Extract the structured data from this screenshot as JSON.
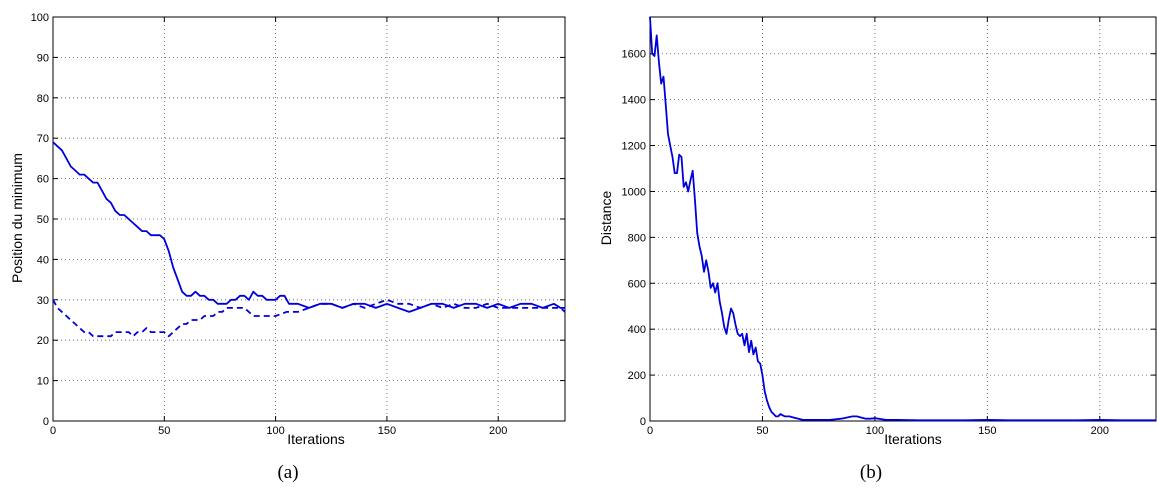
{
  "chart_data": [
    {
      "type": "line",
      "caption": "(a)",
      "xlabel": "Iterations",
      "ylabel": "Position du minimum",
      "xlim": [
        0,
        230
      ],
      "ylim": [
        0,
        100
      ],
      "xticks": [
        0,
        50,
        100,
        150,
        200
      ],
      "yticks": [
        0,
        10,
        20,
        30,
        40,
        50,
        60,
        70,
        80,
        90,
        100
      ],
      "grid": true,
      "color": "#0000dd",
      "series": [
        {
          "style": "solid",
          "x": [
            0,
            2,
            4,
            6,
            8,
            10,
            12,
            14,
            16,
            18,
            20,
            22,
            24,
            26,
            28,
            30,
            32,
            34,
            36,
            38,
            40,
            42,
            44,
            46,
            48,
            50,
            52,
            54,
            56,
            58,
            60,
            62,
            64,
            66,
            68,
            70,
            72,
            74,
            76,
            78,
            80,
            82,
            84,
            86,
            88,
            90,
            92,
            94,
            96,
            98,
            100,
            102,
            104,
            106,
            108,
            110,
            115,
            120,
            125,
            130,
            135,
            140,
            145,
            150,
            155,
            160,
            165,
            170,
            175,
            180,
            185,
            190,
            195,
            200,
            205,
            210,
            215,
            220,
            225,
            228,
            230
          ],
          "y": [
            69,
            68,
            67,
            65,
            63,
            62,
            61,
            61,
            60,
            59,
            59,
            57,
            55,
            54,
            52,
            51,
            51,
            50,
            49,
            48,
            47,
            47,
            46,
            46,
            46,
            45,
            42,
            38,
            35,
            32,
            31,
            31,
            32,
            31,
            31,
            30,
            30,
            29,
            29,
            29,
            30,
            30,
            31,
            31,
            30,
            32,
            31,
            31,
            30,
            30,
            30,
            31,
            31,
            29,
            29,
            29,
            28,
            29,
            29,
            28,
            29,
            29,
            28,
            29,
            28,
            27,
            28,
            29,
            29,
            28,
            29,
            29,
            28,
            29,
            28,
            29,
            29,
            28,
            29,
            28,
            28
          ]
        },
        {
          "style": "dashed",
          "x": [
            0,
            2,
            4,
            6,
            8,
            10,
            12,
            14,
            16,
            18,
            20,
            22,
            24,
            26,
            28,
            30,
            32,
            34,
            36,
            38,
            40,
            42,
            44,
            46,
            48,
            50,
            52,
            54,
            56,
            58,
            60,
            62,
            64,
            66,
            68,
            70,
            72,
            74,
            76,
            78,
            80,
            82,
            84,
            86,
            88,
            90,
            95,
            100,
            105,
            110,
            115,
            120,
            125,
            130,
            135,
            140,
            145,
            150,
            155,
            160,
            165,
            170,
            175,
            180,
            185,
            190,
            195,
            200,
            205,
            210,
            215,
            220,
            225,
            228,
            230
          ],
          "y": [
            30,
            28,
            27,
            26,
            25,
            24,
            23,
            22,
            22,
            21,
            21,
            21,
            21,
            21,
            22,
            22,
            22,
            22,
            21,
            22,
            22,
            23,
            22,
            22,
            22,
            22,
            21,
            22,
            23,
            24,
            24,
            25,
            25,
            25,
            26,
            26,
            26,
            27,
            27,
            28,
            28,
            28,
            28,
            28,
            27,
            26,
            26,
            26,
            27,
            27,
            28,
            29,
            29,
            28,
            29,
            28,
            29,
            30,
            29,
            29,
            28,
            29,
            28,
            29,
            28,
            28,
            29,
            28,
            28,
            28,
            28,
            28,
            28,
            28,
            27
          ]
        }
      ]
    },
    {
      "type": "line",
      "caption": "(b)",
      "xlabel": "Iterations",
      "ylabel": "Distance",
      "xlim": [
        0,
        225
      ],
      "ylim": [
        0,
        1760
      ],
      "xticks": [
        0,
        50,
        100,
        150,
        200
      ],
      "yticks": [
        0,
        200,
        400,
        600,
        800,
        1000,
        1200,
        1400,
        1600
      ],
      "grid": true,
      "color": "#0000dd",
      "series": [
        {
          "style": "solid",
          "x": [
            0,
            1,
            2,
            3,
            4,
            5,
            6,
            7,
            8,
            9,
            10,
            11,
            12,
            13,
            14,
            15,
            16,
            17,
            18,
            19,
            20,
            21,
            22,
            23,
            24,
            25,
            26,
            27,
            28,
            29,
            30,
            31,
            32,
            33,
            34,
            35,
            36,
            37,
            38,
            39,
            40,
            41,
            42,
            43,
            44,
            45,
            46,
            47,
            48,
            49,
            50,
            51,
            52,
            53,
            54,
            55,
            56,
            57,
            58,
            59,
            60,
            62,
            64,
            66,
            68,
            70,
            72,
            74,
            76,
            78,
            80,
            85,
            90,
            92,
            94,
            96,
            98,
            100,
            105,
            110,
            120,
            130,
            140,
            150,
            160,
            170,
            180,
            190,
            200,
            210,
            220,
            225
          ],
          "y": [
            1760,
            1600,
            1590,
            1680,
            1560,
            1470,
            1500,
            1380,
            1250,
            1200,
            1150,
            1080,
            1080,
            1160,
            1150,
            1020,
            1040,
            1000,
            1050,
            1090,
            960,
            820,
            760,
            720,
            650,
            700,
            650,
            580,
            600,
            560,
            600,
            520,
            470,
            410,
            380,
            440,
            490,
            470,
            420,
            380,
            370,
            380,
            330,
            380,
            300,
            350,
            290,
            320,
            260,
            250,
            200,
            130,
            90,
            60,
            40,
            30,
            20,
            20,
            30,
            25,
            20,
            20,
            15,
            10,
            5,
            5,
            5,
            5,
            5,
            5,
            5,
            10,
            20,
            20,
            15,
            10,
            10,
            12,
            5,
            5,
            3,
            3,
            3,
            5,
            3,
            3,
            3,
            3,
            5,
            3,
            3,
            3
          ]
        }
      ]
    }
  ]
}
